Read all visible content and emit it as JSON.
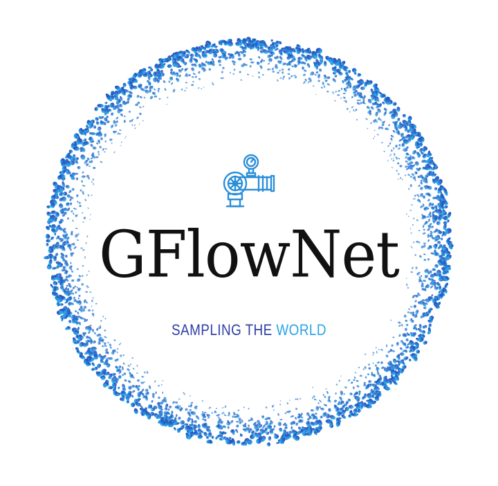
{
  "logo": {
    "title": "GFlowNet",
    "tagline_part1": "SAMPLING THE ",
    "tagline_part2": "WORLD",
    "icon": "pipe-valve-gauge-icon",
    "colors": {
      "ring_start": "#263a9e",
      "ring_end": "#2fb8f0",
      "title": "#111111",
      "tagline_primary": "#2f3fa8",
      "tagline_accent": "#2aa2e6",
      "icon": "#2b8fd8"
    }
  }
}
